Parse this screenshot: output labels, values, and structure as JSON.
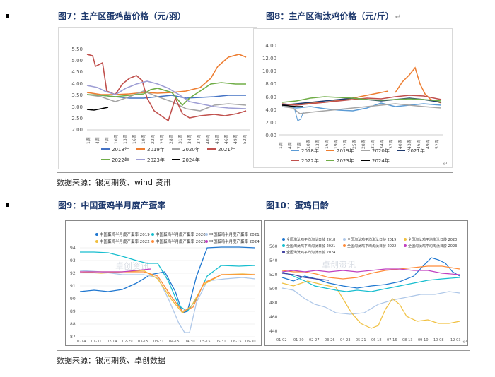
{
  "fig7": {
    "title": "图7：主产区蛋鸡苗价格（元/羽）",
    "y_ticks": [
      "5.50",
      "5.00",
      "4.50",
      "4.00",
      "3.50",
      "3.00",
      "2.50",
      "2.00"
    ],
    "x_ticks": [
      "1周",
      "4周",
      "7周",
      "10周",
      "13周",
      "16周",
      "19周",
      "22周",
      "25周",
      "28周",
      "31周",
      "34周",
      "37周",
      "40周",
      "43周",
      "46周",
      "49周",
      "52周"
    ],
    "legend": [
      "2018年",
      "2019年",
      "2020年",
      "2021年",
      "2022年",
      "2023年",
      "2024年"
    ],
    "colors": [
      "#4472c4",
      "#ed7d31",
      "#a5a5a5",
      "#c0504d",
      "#70ad47",
      "#9e9ed4",
      "#000000"
    ]
  },
  "fig8": {
    "title": "图8：主产区淘汰鸡价格（元/斤）",
    "y_ticks": [
      "14.00",
      "12.00",
      "10.00",
      "8.00",
      "6.00",
      "4.00",
      "2.00",
      "0.00"
    ],
    "x_ticks": [
      "1周",
      "4周",
      "7周",
      "10周",
      "13周",
      "16周",
      "19周",
      "22周",
      "25周",
      "28周",
      "31周",
      "34周",
      "37周",
      "40周",
      "43周",
      "46周",
      "49周",
      "52周"
    ],
    "legend": [
      "2018年",
      "2019年",
      "2020年",
      "2021年",
      "2022年",
      "2023年",
      "2024年"
    ],
    "colors": [
      "#5b9bd5",
      "#ed7d31",
      "#a5a5a5",
      "#1f3a6e",
      "#c0504d",
      "#70ad47",
      "#000000"
    ]
  },
  "fig9": {
    "title": "图9：中国蛋鸡半月度产蛋率",
    "legend": [
      "中国蛋鸡半月度产蛋率 2019",
      "中国蛋鸡半月度产蛋率 2020",
      "中国蛋鸡半月度产蛋率 2021",
      "中国蛋鸡半月度产蛋率 2022",
      "中国蛋鸡半月度产蛋率 2023",
      "中国蛋鸡半月度产蛋率 2024"
    ],
    "colors": [
      "#1f77d0",
      "#17becf",
      "#aec7e8",
      "#f0c040",
      "#ff8c3a",
      "#c040c0"
    ],
    "y_ticks": [
      "94",
      "93",
      "92",
      "91",
      "90",
      "89",
      "88",
      "87"
    ],
    "x_ticks": [
      "01-14",
      "01-31",
      "02-14",
      "02-29",
      "03-15",
      "03-31",
      "04-15",
      "04-30",
      "05-15",
      "05-31",
      "06-15",
      "06-30",
      "07-15",
      "07-31",
      "08-15",
      "08-31",
      "09-15",
      "09-30",
      "10-15",
      "10-31",
      "11-15",
      "11-30",
      "12-15"
    ],
    "watermark": "卓创资讯"
  },
  "fig10": {
    "title": "图10：蛋鸡日龄",
    "legend": [
      "全国淘汰鸡平均淘汰日龄 2018",
      "全国淘汰鸡平均淘汰日龄 2019",
      "全国淘汰鸡平均淘汰日龄 2020",
      "全国淘汰鸡平均淘汰日龄 2021",
      "全国淘汰鸡平均淘汰日龄 2022",
      "全国淘汰鸡平均淘汰日龄 2023",
      "全国淘汰鸡平均淘汰日龄 2024"
    ],
    "colors": [
      "#1f77d0",
      "#aec7e8",
      "#f0c040",
      "#17becf",
      "#ff8c3a",
      "#c040c0",
      "#4040a0"
    ],
    "y_ticks": [
      "560",
      "540",
      "520",
      "500",
      "480",
      "460",
      "440"
    ],
    "x_ticks": [
      "01-02",
      "01-16",
      "01-30",
      "02-13",
      "02-27",
      "03-12",
      "03-26",
      "04-09",
      "04-23",
      "05-07",
      "05-21",
      "06-04",
      "06-18",
      "07-02",
      "07-16",
      "07-30",
      "08-13",
      "08-27",
      "09-10",
      "09-24",
      "10-08",
      "10-22",
      "11-05",
      "11-19",
      "12-03",
      "12-16"
    ],
    "watermark": "卓创资讯"
  },
  "source1": {
    "prefix": "数据来源：",
    "text": "银河期货、wind 资讯"
  },
  "source2": {
    "prefix": "数据来源：",
    "text1": "银河期货、",
    "text2": "卓创数据"
  }
}
